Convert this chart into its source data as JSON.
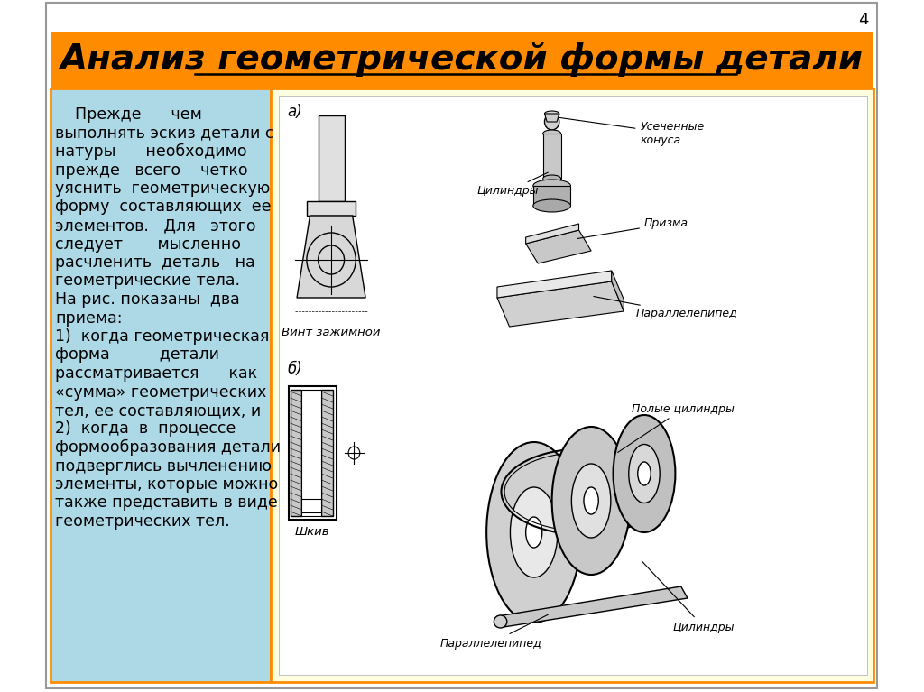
{
  "title": "Анализ геометрической формы детали",
  "title_fontsize": 28,
  "title_color": "#000000",
  "title_bg_color": "#FF8C00",
  "slide_bg_color": "#FFFFFF",
  "left_panel_bg": "#ADD8E6",
  "right_panel_bg": "#FFFFE0",
  "page_number": "4",
  "body_text_lines": [
    "    Прежде      чем",
    "выполнять эскиз детали с",
    "натуры      необходимо",
    "прежде   всего    четко",
    "уяснить  геометрическую",
    "форму  составляющих  ее",
    "элементов.   Для   этого",
    "следует       мысленно",
    "расчленить  деталь   на",
    "геометрические тела.",
    "На рис. показаны  два",
    "приема:",
    "1)  когда геометрическая",
    "форма          детали",
    "рассматривается      как",
    "«сумма» геометрических",
    "тел, ее составляющих, и",
    "2)  когда  в  процессе",
    "формообразования детали",
    "подверглись вычленению",
    "элементы, которые можно",
    "также представить в виде",
    "геометрических тел."
  ],
  "body_fontsize": 12.5,
  "border_color": "#FF8C00",
  "border_width": 3,
  "label_a": "а)",
  "label_b": "б)",
  "label_vint": "Винт зажимной",
  "label_shkiv": "Шкив",
  "label_tsilindr_a": "Цилиндры",
  "label_usech": "Усеченные\nконуса",
  "label_prizma": "Призма",
  "label_parall_a": "Параллелепипед",
  "label_polye": "Полые цилиндры",
  "label_parall_b": "Параллелепипед",
  "label_tsilindr_b": "Цилиндры"
}
